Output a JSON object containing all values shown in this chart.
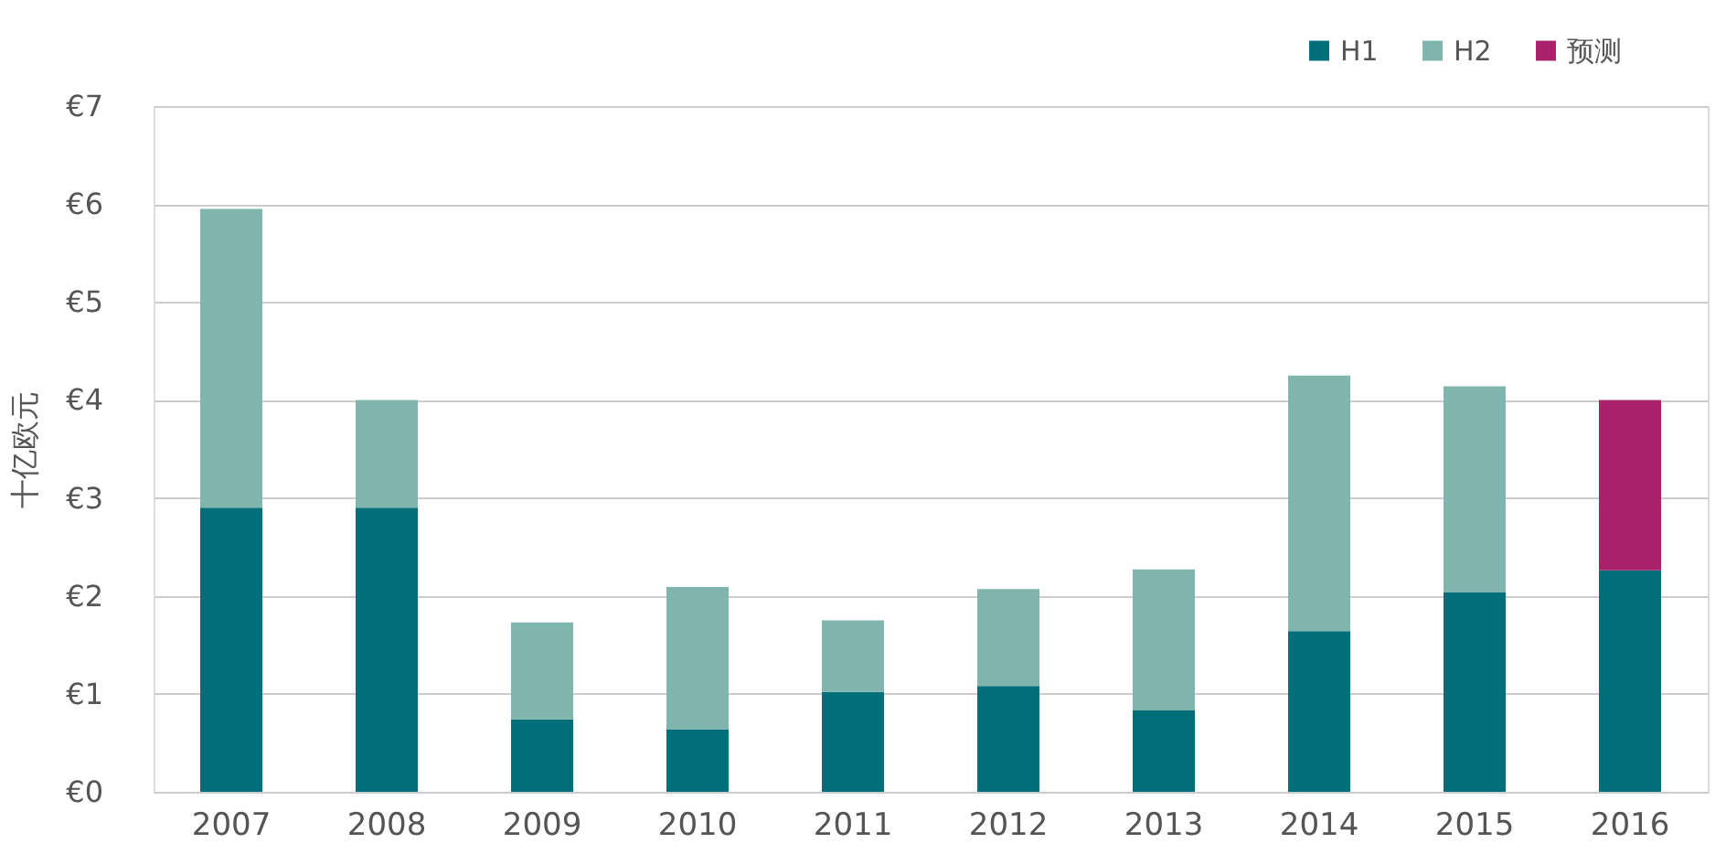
{
  "chart_data": {
    "type": "bar",
    "stacked": true,
    "ylabel": "十亿欧元",
    "categories": [
      "2007",
      "2008",
      "2009",
      "2010",
      "2011",
      "2012",
      "2013",
      "2014",
      "2015",
      "2016"
    ],
    "series": [
      {
        "name": "H1",
        "color": "#006f7a",
        "values": [
          2.9,
          2.9,
          0.74,
          0.64,
          1.02,
          1.08,
          0.83,
          1.64,
          2.04,
          2.26
        ]
      },
      {
        "name": "H2",
        "color": "#7fb5ac",
        "values": [
          3.05,
          1.1,
          0.99,
          1.45,
          0.73,
          0.99,
          1.44,
          2.61,
          2.1,
          null
        ]
      },
      {
        "name": "预测",
        "color": "#a9206b",
        "values": [
          null,
          null,
          null,
          null,
          null,
          null,
          null,
          null,
          null,
          1.74
        ]
      }
    ],
    "ylim": [
      0,
      7
    ],
    "yticks": [
      {
        "value": 0,
        "label": "€0"
      },
      {
        "value": 1,
        "label": "€1"
      },
      {
        "value": 2,
        "label": "€2"
      },
      {
        "value": 3,
        "label": "€3"
      },
      {
        "value": 4,
        "label": "€4"
      },
      {
        "value": 5,
        "label": "€5"
      },
      {
        "value": 6,
        "label": "€6"
      },
      {
        "value": 7,
        "label": "€7"
      }
    ],
    "grid": "y",
    "legend": "top right"
  }
}
